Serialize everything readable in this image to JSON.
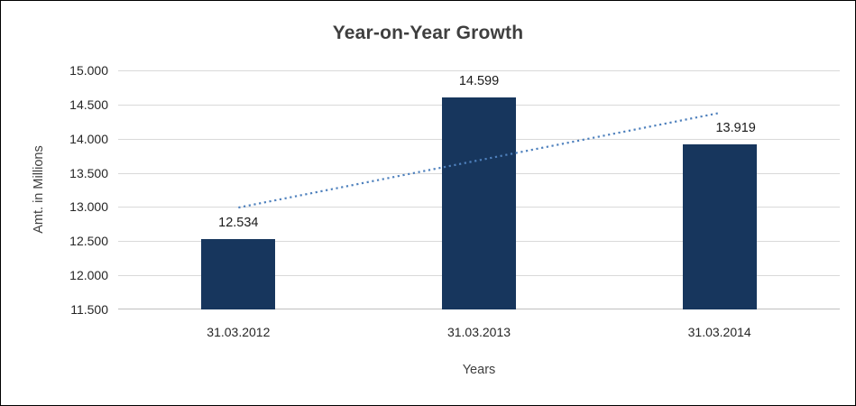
{
  "chart_data": {
    "type": "bar",
    "title": "Year-on-Year Growth",
    "xlabel": "Years",
    "ylabel": "Amt. in Millions",
    "categories": [
      "31.03.2012",
      "31.03.2013",
      "31.03.2014"
    ],
    "values": [
      12.534,
      14.599,
      13.919
    ],
    "value_labels": [
      "12.534",
      "14.599",
      "13.919"
    ],
    "ylim": [
      11.5,
      15.0
    ],
    "ytick_step": 0.5,
    "ytick_labels": [
      "11.500",
      "12.000",
      "12.500",
      "13.000",
      "13.500",
      "14.000",
      "14.500",
      "15.000"
    ],
    "grid": true,
    "legend": "none",
    "bar_color": "#17365d",
    "trendline": {
      "type": "linear",
      "style": "dotted",
      "color": "#4f81bd",
      "start_value": 12.992,
      "end_value": 14.377
    },
    "colors": {
      "grid": "#d9d9d9",
      "axis": "#bfbfbf",
      "text": "#262626",
      "title_text": "#3f3f3f",
      "border": "#000000",
      "background": "#ffffff"
    }
  }
}
